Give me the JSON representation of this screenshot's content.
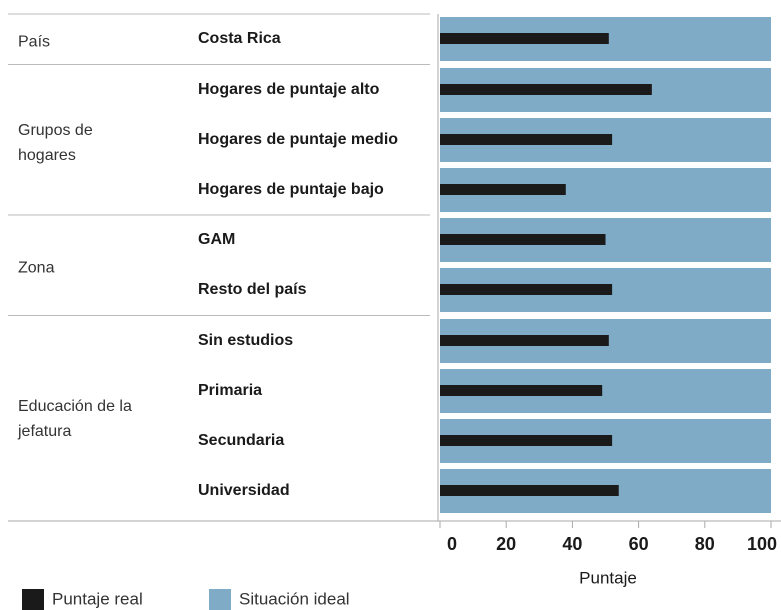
{
  "chart_data": {
    "type": "bar",
    "orientation": "horizontal",
    "groups": [
      {
        "name": "País",
        "categories": [
          "Costa Rica"
        ]
      },
      {
        "name": "Grupos de hogares",
        "categories": [
          "Hogares de puntaje alto",
          "Hogares de puntaje medio",
          "Hogares de puntaje bajo"
        ]
      },
      {
        "name": "Zona",
        "categories": [
          "GAM",
          "Resto del país"
        ]
      },
      {
        "name": "Educación de la jefatura",
        "categories": [
          "Sin estudios",
          "Primaria",
          "Secundaria",
          "Universidad"
        ]
      }
    ],
    "series": [
      {
        "name": "Situación ideal",
        "color": "#7fabc6",
        "values": [
          100,
          100,
          100,
          100,
          100,
          100,
          100,
          100,
          100,
          100
        ]
      },
      {
        "name": "Puntaje real",
        "color": "#1a1a1a",
        "values": [
          51,
          64,
          52,
          38,
          50,
          52,
          51,
          49,
          52,
          54
        ]
      }
    ],
    "xlabel": "Puntaje",
    "xlim": [
      0,
      100
    ],
    "xticks": [
      0,
      20,
      40,
      60,
      80,
      100
    ]
  }
}
